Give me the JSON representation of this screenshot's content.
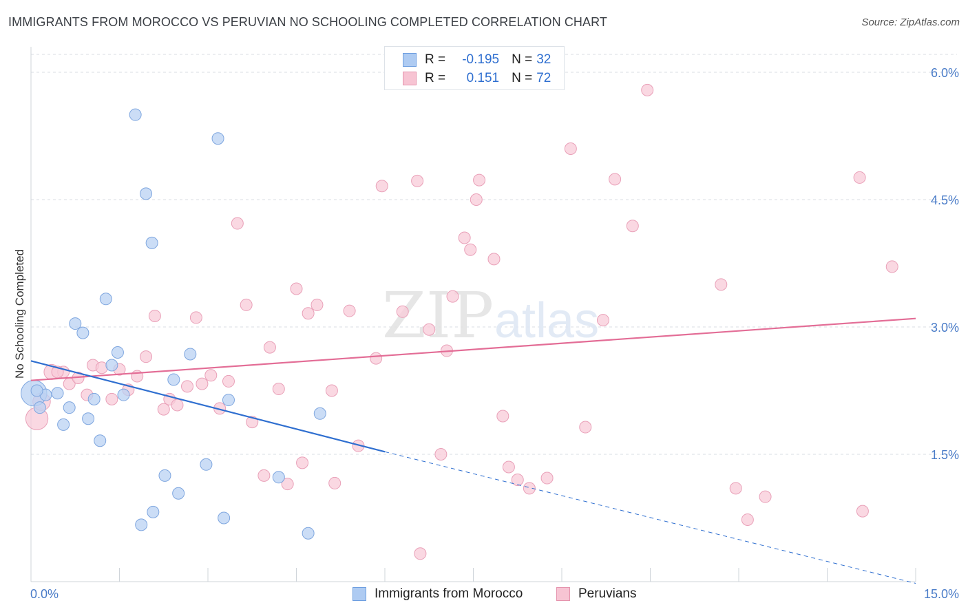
{
  "header": {
    "title": "IMMIGRANTS FROM MOROCCO VS PERUVIAN NO SCHOOLING COMPLETED CORRELATION CHART",
    "source": "Source: ZipAtlas.com"
  },
  "legend": {
    "r_label": "R =",
    "n_label": "N =",
    "rows": [
      {
        "r": "-0.195",
        "n": "32",
        "color": "#aecbf2",
        "border": "#6d9ee0"
      },
      {
        "r": "0.151",
        "n": "72",
        "color": "#f7c4d3",
        "border": "#e593ad"
      }
    ]
  },
  "watermark": {
    "zip": "ZIP",
    "atlas": "atlas"
  },
  "colors": {
    "blue_fill": "#b9d1f3",
    "blue_stroke": "#7ea6df",
    "blue_line": "#2f6fd0",
    "pink_fill": "#f8cbd8",
    "pink_stroke": "#e9a0b8",
    "pink_line": "#e36d96",
    "grid": "#d9dde3",
    "axis_label": "#4a7cc8"
  },
  "chart_data": {
    "type": "scatter",
    "title": "IMMIGRANTS FROM MOROCCO VS PERUVIAN NO SCHOOLING COMPLETED CORRELATION CHART",
    "xlabel": "",
    "ylabel": "No Schooling Completed",
    "xlim": [
      0,
      15
    ],
    "ylim": [
      0,
      6.3
    ],
    "x_tick_labels": [
      "0.0%",
      "15.0%"
    ],
    "y_ticks": [
      1.5,
      3.0,
      4.5,
      6.0
    ],
    "y_tick_labels": [
      "1.5%",
      "3.0%",
      "4.5%",
      "6.0%"
    ],
    "grid": true,
    "legend_position": "bottom",
    "series": [
      {
        "name": "Immigrants from Morocco",
        "r": -0.195,
        "n": 32,
        "trend": {
          "x0": 0.0,
          "y0": 2.6,
          "x1": 6.0,
          "y1": 1.53,
          "dash_x1": 15.0,
          "dash_y1": -0.02
        },
        "points": [
          [
            0.05,
            2.22,
            2.2
          ],
          [
            0.15,
            2.05,
            1
          ],
          [
            0.25,
            2.2,
            1
          ],
          [
            0.45,
            2.22,
            1
          ],
          [
            0.55,
            1.85,
            1
          ],
          [
            0.65,
            2.05,
            1
          ],
          [
            0.75,
            3.04,
            1
          ],
          [
            0.88,
            2.93,
            1
          ],
          [
            0.97,
            1.92,
            1
          ],
          [
            1.07,
            2.15,
            1
          ],
          [
            1.17,
            1.66,
            1
          ],
          [
            1.27,
            3.33,
            1
          ],
          [
            1.37,
            2.55,
            1
          ],
          [
            1.47,
            2.7,
            1
          ],
          [
            1.57,
            2.2,
            1
          ],
          [
            1.77,
            5.5,
            1
          ],
          [
            1.87,
            0.67,
            1
          ],
          [
            1.95,
            4.57,
            1
          ],
          [
            2.05,
            3.99,
            1
          ],
          [
            2.07,
            0.82,
            1
          ],
          [
            2.27,
            1.25,
            1
          ],
          [
            2.42,
            2.38,
            1
          ],
          [
            2.5,
            1.04,
            1
          ],
          [
            2.7,
            2.68,
            1
          ],
          [
            2.97,
            1.38,
            1
          ],
          [
            3.17,
            5.22,
            1
          ],
          [
            3.27,
            0.75,
            1
          ],
          [
            3.35,
            2.14,
            1
          ],
          [
            4.2,
            1.23,
            1
          ],
          [
            4.7,
            0.57,
            1
          ],
          [
            4.9,
            1.98,
            1
          ],
          [
            0.1,
            2.25,
            1
          ]
        ]
      },
      {
        "name": "Peruvians",
        "r": 0.151,
        "n": 72,
        "trend": {
          "x0": 0.0,
          "y0": 2.37,
          "x1": 15.0,
          "y1": 3.1
        },
        "points": [
          [
            0.1,
            1.92,
            1.9
          ],
          [
            0.18,
            2.12,
            1.5
          ],
          [
            0.35,
            2.47,
            1.3
          ],
          [
            0.55,
            2.47,
            1
          ],
          [
            0.65,
            2.33,
            1
          ],
          [
            0.8,
            2.4,
            1
          ],
          [
            0.95,
            2.2,
            1
          ],
          [
            1.05,
            2.55,
            1
          ],
          [
            1.2,
            2.52,
            1
          ],
          [
            1.37,
            2.15,
            1
          ],
          [
            1.5,
            2.5,
            1
          ],
          [
            1.65,
            2.26,
            1
          ],
          [
            1.8,
            2.42,
            1
          ],
          [
            1.95,
            2.65,
            1
          ],
          [
            2.1,
            3.13,
            1
          ],
          [
            2.25,
            2.03,
            1
          ],
          [
            2.35,
            2.15,
            1
          ],
          [
            2.48,
            2.08,
            1
          ],
          [
            2.65,
            2.3,
            1
          ],
          [
            2.8,
            3.11,
            1
          ],
          [
            2.9,
            2.33,
            1
          ],
          [
            3.05,
            2.43,
            1
          ],
          [
            3.2,
            2.04,
            1
          ],
          [
            3.35,
            2.36,
            1
          ],
          [
            3.5,
            4.22,
            1
          ],
          [
            3.65,
            3.26,
            1
          ],
          [
            3.75,
            1.88,
            1
          ],
          [
            3.95,
            1.25,
            1
          ],
          [
            4.05,
            2.76,
            1
          ],
          [
            4.2,
            2.27,
            1
          ],
          [
            4.35,
            1.15,
            1
          ],
          [
            4.5,
            3.45,
            1
          ],
          [
            4.6,
            1.4,
            1
          ],
          [
            4.7,
            3.16,
            1
          ],
          [
            4.85,
            3.26,
            1
          ],
          [
            5.1,
            2.25,
            1
          ],
          [
            5.15,
            1.16,
            1
          ],
          [
            5.4,
            3.19,
            1
          ],
          [
            5.55,
            1.6,
            1
          ],
          [
            5.85,
            2.63,
            1
          ],
          [
            5.95,
            4.66,
            1
          ],
          [
            6.3,
            3.18,
            1
          ],
          [
            6.55,
            4.72,
            1
          ],
          [
            6.6,
            0.33,
            1
          ],
          [
            6.75,
            2.97,
            1
          ],
          [
            6.95,
            1.5,
            1
          ],
          [
            7.05,
            2.72,
            1
          ],
          [
            7.15,
            3.36,
            1
          ],
          [
            7.35,
            4.05,
            1
          ],
          [
            7.45,
            3.91,
            1
          ],
          [
            7.55,
            4.5,
            1
          ],
          [
            7.6,
            4.73,
            1
          ],
          [
            7.85,
            3.8,
            1
          ],
          [
            8.0,
            1.95,
            1
          ],
          [
            8.1,
            1.35,
            1
          ],
          [
            8.25,
            1.2,
            1
          ],
          [
            8.45,
            1.1,
            1
          ],
          [
            8.75,
            1.22,
            1
          ],
          [
            9.15,
            5.1,
            1
          ],
          [
            9.4,
            1.82,
            1
          ],
          [
            9.7,
            3.08,
            1
          ],
          [
            9.9,
            4.74,
            1
          ],
          [
            10.2,
            4.19,
            1
          ],
          [
            10.45,
            5.79,
            1
          ],
          [
            11.7,
            3.5,
            1
          ],
          [
            11.95,
            1.1,
            1
          ],
          [
            12.15,
            0.73,
            1
          ],
          [
            12.45,
            1.0,
            1
          ],
          [
            14.05,
            4.76,
            1
          ],
          [
            14.1,
            0.83,
            1
          ],
          [
            14.6,
            3.71,
            1
          ],
          [
            0.45,
            2.47,
            1
          ]
        ]
      }
    ]
  }
}
